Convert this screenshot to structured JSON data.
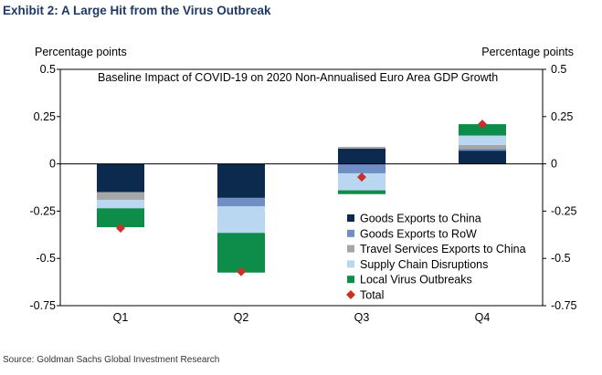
{
  "exhibit_title": "Exhibit 2: A Large Hit from the Virus Outbreak",
  "source": "Source: Goldman Sachs Global Investment Research",
  "chart_data": {
    "type": "bar",
    "stacked": true,
    "title": "Baseline Impact of COVID-19 on 2020 Non-Annualised Euro Area GDP Growth",
    "ylabel_left": "Percentage points",
    "ylabel_right": "Percentage points",
    "ylim": [
      -0.75,
      0.5
    ],
    "yticks": [
      0.5,
      0.25,
      0,
      -0.25,
      -0.5,
      -0.75
    ],
    "ytick_labels": [
      "0.5",
      "0.25",
      "0",
      "-0.25",
      "-0.5",
      "-0.75"
    ],
    "categories": [
      "Q1",
      "Q2",
      "Q3",
      "Q4"
    ],
    "series": [
      {
        "name": "Goods Exports to China",
        "color": "#0c2a4e",
        "values": [
          -0.15,
          -0.18,
          0.08,
          0.07
        ]
      },
      {
        "name": "Goods Exports to RoW",
        "color": "#6f8fc4",
        "values": [
          0.0,
          -0.045,
          -0.05,
          0.01
        ]
      },
      {
        "name": "Travel Services Exports to China",
        "color": "#a6a6a6",
        "values": [
          -0.04,
          0.0,
          0.01,
          0.02
        ]
      },
      {
        "name": "Supply Chain Disruptions",
        "color": "#b9d7f0",
        "values": [
          -0.045,
          -0.14,
          -0.09,
          0.05
        ]
      },
      {
        "name": "Local Virus Outbreaks",
        "color": "#0e8c4a",
        "values": [
          -0.1,
          -0.21,
          -0.02,
          0.06
        ]
      }
    ],
    "total": {
      "name": "Total",
      "color": "#c8302a",
      "values": [
        -0.34,
        -0.57,
        -0.07,
        0.21
      ]
    },
    "legend_position": "bottom-right-inside"
  }
}
